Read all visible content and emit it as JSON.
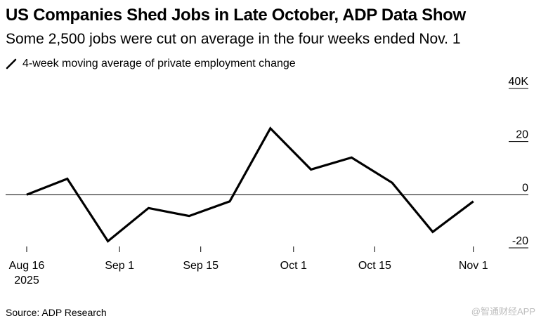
{
  "header": {
    "title": "US Companies Shed Jobs in Late October, ADP Data Show",
    "subtitle": "Some 2,500 jobs were cut on average in the four weeks ended Nov. 1"
  },
  "legend": {
    "label": "4-week moving average of private employment change",
    "icon": "line-icon"
  },
  "footer": {
    "source": "Source: ADP Research",
    "watermark": "@智通财经APP"
  },
  "colors": {
    "line": "#000000",
    "grid": "#000000",
    "zero": "#000000"
  },
  "chart_data": {
    "type": "line",
    "title": "US Companies Shed Jobs in Late October, ADP Data Show",
    "subtitle": "Some 2,500 jobs were cut on average in the four weeks ended Nov. 1",
    "xlabel": "",
    "ylabel": "",
    "grid": false,
    "y_axis_position": "right",
    "ylim": [
      -20,
      40
    ],
    "yticks": [
      {
        "value": 40,
        "label": "40K"
      },
      {
        "value": 20,
        "label": "20"
      },
      {
        "value": 0,
        "label": "0"
      },
      {
        "value": -20,
        "label": "-20"
      }
    ],
    "x_domain": [
      0,
      78
    ],
    "xticks": [
      {
        "x": 0,
        "label": "Aug 16",
        "sublabel": "2025"
      },
      {
        "x": 16,
        "label": "Sep 1"
      },
      {
        "x": 30,
        "label": "Sep 15"
      },
      {
        "x": 46,
        "label": "Oct 1"
      },
      {
        "x": 60,
        "label": "Oct 15"
      },
      {
        "x": 77,
        "label": "Nov 1"
      }
    ],
    "series": [
      {
        "name": "4-week moving average of private employment change",
        "x": [
          0,
          7,
          14,
          21,
          28,
          35,
          42,
          49,
          56,
          63,
          70,
          77
        ],
        "values": [
          0,
          6,
          -17.5,
          -5,
          -8,
          -2.5,
          25,
          9.5,
          14,
          4.5,
          -14,
          -2.5
        ]
      }
    ]
  }
}
